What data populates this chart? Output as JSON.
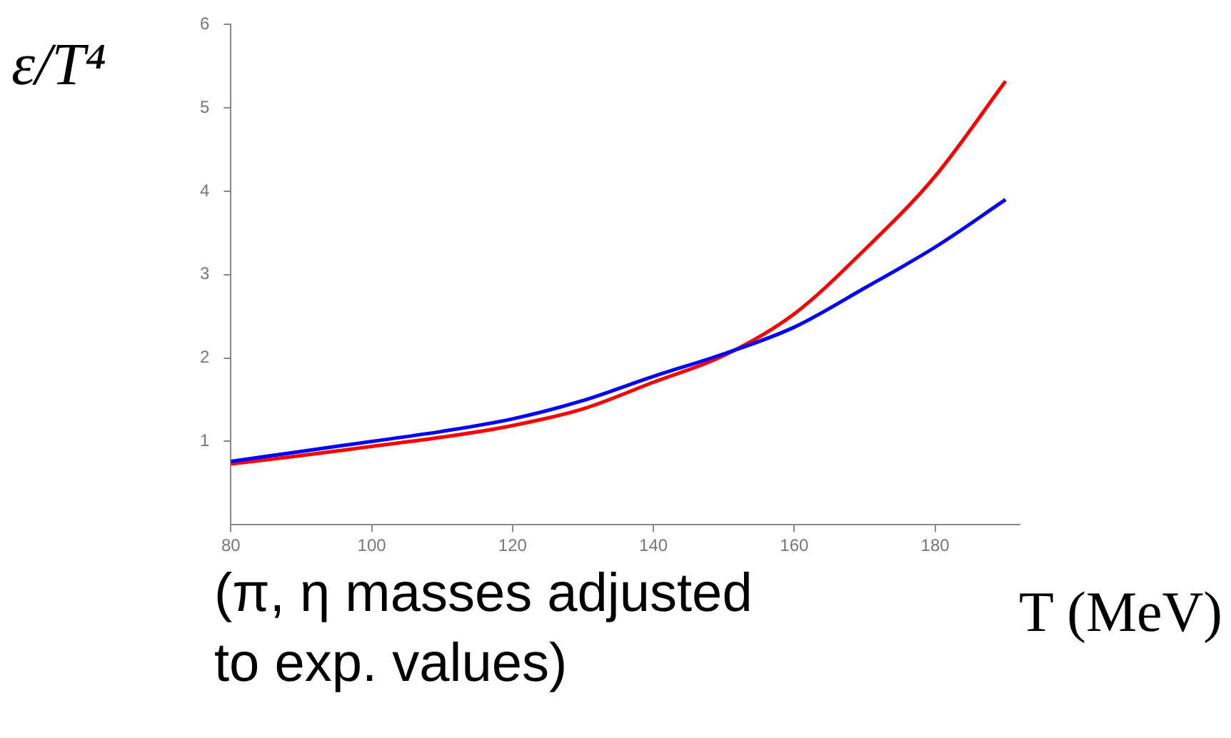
{
  "chart_data": {
    "type": "line",
    "ylabel": "ε/T⁴",
    "xlabel": "T (MeV)",
    "annotations": [
      "(π, η masses adjusted to exp. values)"
    ],
    "xlim": [
      80,
      192
    ],
    "xticks": [
      80,
      100,
      120,
      140,
      160,
      180
    ],
    "ylim": [
      0,
      6
    ],
    "yticks": [
      1,
      2,
      3,
      4,
      5,
      6
    ],
    "grid": false,
    "legend": false,
    "marker": "none",
    "line_style": "solid",
    "x": [
      80,
      90,
      100,
      110,
      120,
      130,
      140,
      150,
      160,
      170,
      180,
      190
    ],
    "series": [
      {
        "color": "#0000ff",
        "values": [
          0.76,
          0.88,
          1.0,
          1.12,
          1.27,
          1.49,
          1.78,
          2.05,
          2.37,
          2.84,
          3.33,
          3.9
        ]
      },
      {
        "color": "#ff0000",
        "values": [
          0.73,
          0.83,
          0.94,
          1.05,
          1.19,
          1.39,
          1.71,
          2.03,
          2.53,
          3.3,
          4.18,
          5.32
        ]
      }
    ]
  }
}
